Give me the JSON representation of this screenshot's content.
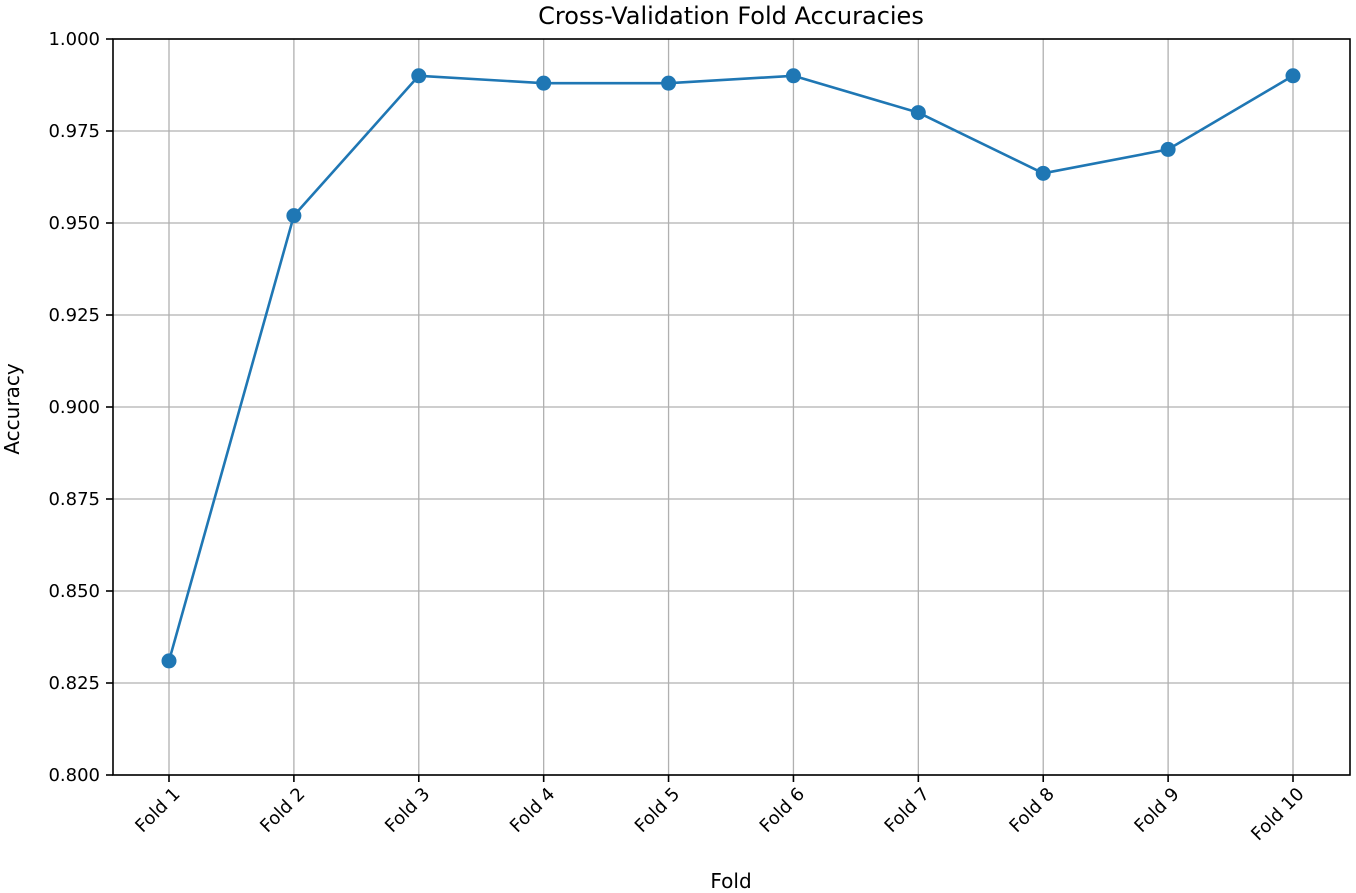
{
  "chart_data": {
    "type": "line",
    "title": "Cross-Validation Fold Accuracies",
    "xlabel": "Fold",
    "ylabel": "Accuracy",
    "categories": [
      "Fold 1",
      "Fold 2",
      "Fold 3",
      "Fold 4",
      "Fold 5",
      "Fold 6",
      "Fold 7",
      "Fold 8",
      "Fold 9",
      "Fold 10"
    ],
    "series": [
      {
        "values": [
          0.831,
          0.952,
          0.99,
          0.988,
          0.988,
          0.99,
          0.98,
          0.9635,
          0.97,
          0.99
        ],
        "color": "#1f77b4",
        "marker": "circle"
      }
    ],
    "ylim": [
      0.8,
      1.0
    ],
    "yticks": [
      "0.800",
      "0.825",
      "0.850",
      "0.875",
      "0.900",
      "0.925",
      "0.950",
      "0.975",
      "1.000"
    ],
    "grid": true,
    "legend": "none"
  }
}
